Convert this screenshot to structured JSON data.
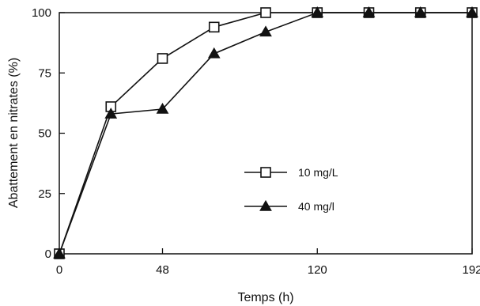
{
  "chart_data": {
    "type": "line",
    "title": "",
    "xlabel": "Temps (h)",
    "ylabel": "Abattement en nitrates (%)",
    "xlim": [
      0,
      192
    ],
    "ylim": [
      0,
      100
    ],
    "x_ticks": [
      0,
      48,
      120,
      192
    ],
    "y_ticks": [
      0,
      25,
      50,
      75,
      100
    ],
    "grid": false,
    "legend_position": "center-right",
    "series": [
      {
        "name": "10 mg/L",
        "marker": "open-square",
        "color": "#111111",
        "x": [
          0,
          24,
          48,
          72,
          96,
          120,
          144,
          168,
          192
        ],
        "y": [
          0,
          61,
          81,
          94,
          100,
          100,
          100,
          100,
          100
        ]
      },
      {
        "name": "40 mg/l",
        "marker": "filled-triangle",
        "color": "#111111",
        "x": [
          0,
          24,
          48,
          72,
          96,
          120,
          144,
          168,
          192
        ],
        "y": [
          0,
          58,
          60,
          83,
          92,
          100,
          100,
          100,
          100
        ]
      }
    ]
  }
}
